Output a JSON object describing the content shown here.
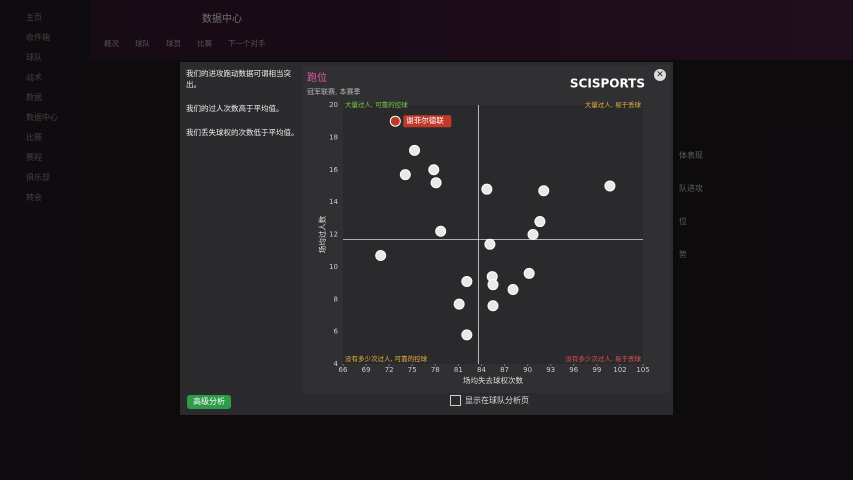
{
  "header": {
    "title": "数据中心",
    "tabs": [
      "概况",
      "球队",
      "球员",
      "比赛",
      "下一个对手"
    ]
  },
  "sidebar": [
    "主页",
    "收件箱",
    "球队",
    "战术",
    "数据",
    "数据中心",
    "比赛",
    "赛程",
    "俱乐部",
    "转会"
  ],
  "right_panel": [
    "体表现",
    "队进攻",
    "位",
    "势"
  ],
  "modal": {
    "insights": [
      "我们的进攻跑动数据可谓相当突出。",
      "我们的过人次数高于平均值。",
      "我们丢失球权的次数低于平均值。"
    ],
    "logo": "SCISPORTS",
    "button": "高级分析",
    "checkbox": "显示在球队分析页"
  },
  "chart_data": {
    "type": "scatter",
    "title": "跑位",
    "subtitle": "冠军联赛, 本赛季",
    "x_label": "场均失去球权次数",
    "y_label": "场均过人数",
    "quadrant_labels": {
      "top_left": "大量过人, 可靠的控球",
      "top_right": "大量过人, 易于丢球",
      "bottom_left": "没有多少次过人, 可靠的控球",
      "bottom_right": "没有多少次过人, 易于丢球"
    },
    "xlim": [
      66,
      105
    ],
    "xticks": [
      66,
      69,
      72,
      75,
      78,
      81,
      84,
      87,
      90,
      93,
      96,
      99,
      102,
      105
    ],
    "ylim": [
      4,
      20
    ],
    "yticks": [
      4,
      6,
      8,
      10,
      12,
      14,
      16,
      18,
      20
    ],
    "reference_lines": {
      "x": 83.6,
      "y": 11.7
    },
    "series": [
      {
        "name": "谢菲尔德联",
        "color": "#c0392b",
        "x": [
          72.8
        ],
        "values": [
          19.0
        ]
      },
      {
        "color": "#e8e8e8",
        "x": [
          75.3,
          74.1,
          77.8,
          78.1,
          84.7,
          92.1,
          100.7,
          91.6,
          78.7,
          90.7,
          85.1,
          70.9,
          90.2,
          85.4,
          82.1,
          85.5,
          88.1,
          81.1,
          85.5,
          82.1
        ],
        "values": [
          17.2,
          15.7,
          16.0,
          15.2,
          14.8,
          14.7,
          15.0,
          12.8,
          12.2,
          12.0,
          11.4,
          10.7,
          9.6,
          9.4,
          9.1,
          8.9,
          8.6,
          7.7,
          7.6,
          5.8
        ]
      }
    ]
  }
}
